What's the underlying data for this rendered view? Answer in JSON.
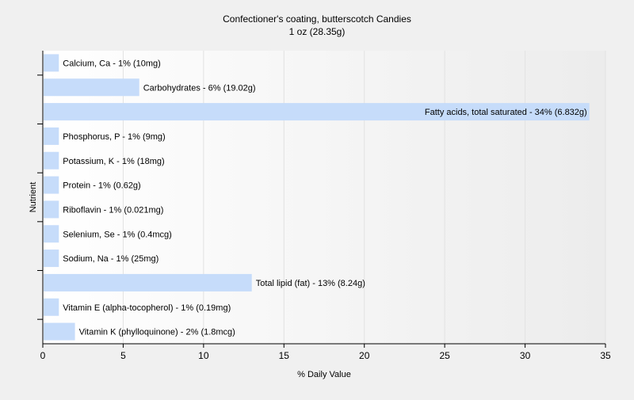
{
  "chart_data": {
    "type": "bar",
    "orientation": "horizontal",
    "title": "Confectioner's coating, butterscotch Candies",
    "subtitle": "1 oz (28.35g)",
    "xlabel": "% Daily Value",
    "ylabel": "Nutrient",
    "xlim": [
      0,
      35
    ],
    "xticks": [
      "0",
      "5",
      "10",
      "15",
      "20",
      "25",
      "30",
      "35"
    ],
    "grid": true,
    "bar_color": "#c6dcfa",
    "categories": [
      "Calcium, Ca",
      "Carbohydrates",
      "Fatty acids, total saturated",
      "Phosphorus, P",
      "Potassium, K",
      "Protein",
      "Riboflavin",
      "Selenium, Se",
      "Sodium, Na",
      "Total lipid (fat)",
      "Vitamin E (alpha-tocopherol)",
      "Vitamin K (phylloquinone)"
    ],
    "values": [
      1,
      6,
      34,
      1,
      1,
      1,
      1,
      1,
      1,
      13,
      1,
      2
    ],
    "data_labels": [
      "Calcium, Ca - 1% (10mg)",
      "Carbohydrates - 6% (19.02g)",
      "Fatty acids, total saturated - 34% (6.832g)",
      "Phosphorus, P - 1% (9mg)",
      "Potassium, K - 1% (18mg)",
      "Protein - 1% (0.62g)",
      "Riboflavin - 1% (0.021mg)",
      "Selenium, Se - 1% (0.4mcg)",
      "Sodium, Na - 1% (25mg)",
      "Total lipid (fat) - 13% (8.24g)",
      "Vitamin E (alpha-tocopherol) - 1% (0.19mg)",
      "Vitamin K (phylloquinone) - 2% (1.8mcg)"
    ]
  }
}
